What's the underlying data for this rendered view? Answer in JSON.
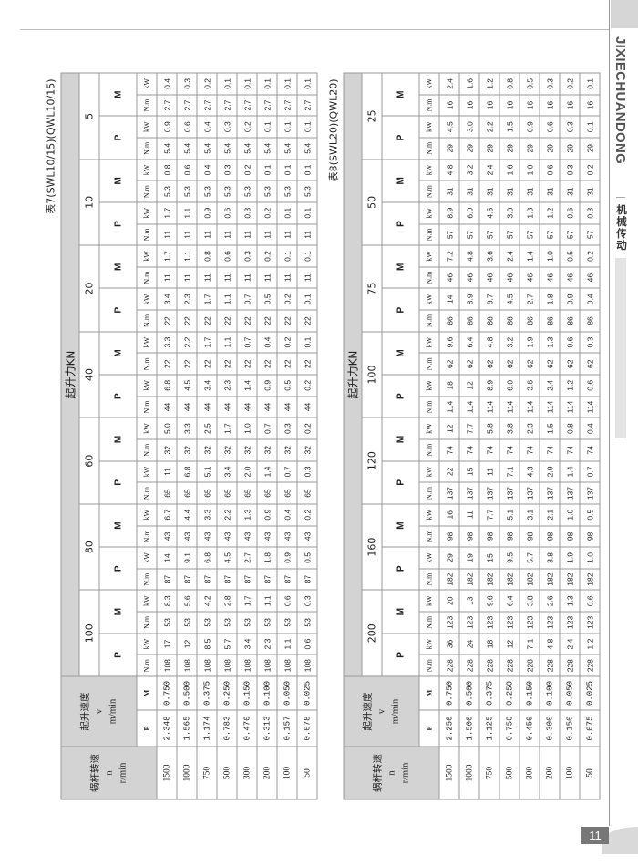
{
  "sidebar": {
    "brand_en": "JIXIECHUANDONG",
    "brand_cn": "机械传动",
    "page_number": "11"
  },
  "labels": {
    "worm_speed": "蜗杆转速",
    "worm_speed_symbol": "n",
    "worm_speed_unit": "r/min",
    "lift_speed": "起升速度",
    "lift_speed_symbol": "v",
    "lift_speed_unit": "m/min",
    "lift_force": "起升力KN",
    "P": "P",
    "M": "M",
    "nm": "N.m",
    "kw": "kW"
  },
  "tables": [
    {
      "caption": "表7(SWL10/15)(QWL10/15)",
      "rows": [
        {
          "n": "1500",
          "vP": "2.348",
          "vM": "0.750"
        },
        {
          "n": "1000",
          "vP": "1.565",
          "vM": "0.500"
        },
        {
          "n": "750",
          "vP": "1.174",
          "vM": "0.375"
        },
        {
          "n": "500",
          "vP": "0.783",
          "vM": "0.250"
        },
        {
          "n": "300",
          "vP": "0.470",
          "vM": "0.150"
        },
        {
          "n": "200",
          "vP": "0.313",
          "vM": "0.100"
        },
        {
          "n": "100",
          "vP": "0.157",
          "vM": "0.050"
        },
        {
          "n": "50",
          "vP": "0.078",
          "vM": "0.025"
        }
      ],
      "loads": [
        {
          "load": "100",
          "P": {
            "nm": "108",
            "kw": [
              "17",
              "12",
              "8.5",
              "5.7",
              "3.4",
              "2.3",
              "1.1",
              "0.6"
            ]
          },
          "M": {
            "nm": "53",
            "kw": [
              "8.3",
              "5.6",
              "4.2",
              "2.8",
              "1.7",
              "1.1",
              "0.6",
              "0.3"
            ]
          }
        },
        {
          "load": "80",
          "P": {
            "nm": "87",
            "kw": [
              "14",
              "9.1",
              "6.8",
              "4.5",
              "2.7",
              "1.8",
              "0.9",
              "0.5"
            ]
          },
          "M": {
            "nm": "43",
            "kw": [
              "6.7",
              "4.4",
              "3.3",
              "2.2",
              "1.3",
              "0.9",
              "0.4",
              "0.2"
            ]
          }
        },
        {
          "load": "60",
          "P": {
            "nm": "65",
            "kw": [
              "11",
              "6.8",
              "5.1",
              "3.4",
              "2.0",
              "1.4",
              "0.7",
              "0.3"
            ]
          },
          "M": {
            "nm": "32",
            "kw": [
              "5.0",
              "3.3",
              "2.5",
              "1.7",
              "1.0",
              "0.7",
              "0.3",
              "0.2"
            ]
          }
        },
        {
          "load": "40",
          "P": {
            "nm": "44",
            "kw": [
              "6.8",
              "4.5",
              "3.4",
              "2.3",
              "1.4",
              "0.9",
              "0.5",
              "0.2"
            ]
          },
          "M": {
            "nm": "22",
            "kw": [
              "3.3",
              "2.2",
              "1.7",
              "1.1",
              "0.7",
              "0.4",
              "0.2",
              "0.1"
            ]
          }
        },
        {
          "load": "20",
          "P": {
            "nm": "22",
            "kw": [
              "3.4",
              "2.3",
              "1.7",
              "1.1",
              "0.7",
              "0.5",
              "0.2",
              "0.1"
            ]
          },
          "M": {
            "nm": "11",
            "kw": [
              "1.7",
              "1.1",
              "0.8",
              "0.6",
              "0.3",
              "0.2",
              "0.1",
              "0.1"
            ]
          }
        },
        {
          "load": "10",
          "P": {
            "nm": "11",
            "kw": [
              "1.7",
              "1.1",
              "0.9",
              "0.6",
              "0.3",
              "0.2",
              "0.1",
              "0.1"
            ]
          },
          "M": {
            "nm": "5.3",
            "kw": [
              "0.8",
              "0.6",
              "0.4",
              "0.3",
              "0.2",
              "0.1",
              "0.1",
              "0.1"
            ]
          }
        },
        {
          "load": "5",
          "P": {
            "nm": "5.4",
            "kw": [
              "0.9",
              "0.6",
              "0.4",
              "0.3",
              "0.2",
              "0.1",
              "0.1",
              "0.1"
            ]
          },
          "M": {
            "nm": "2.7",
            "kw": [
              "0.4",
              "0.3",
              "0.2",
              "0.1",
              "0.1",
              "0.1",
              "0.1",
              "0.1"
            ]
          }
        }
      ]
    },
    {
      "caption": "表8(SWL20)(QWL20)",
      "rows": [
        {
          "n": "1500",
          "vP": "2.250",
          "vM": "0.750"
        },
        {
          "n": "1000",
          "vP": "1.500",
          "vM": "0.500"
        },
        {
          "n": "750",
          "vP": "1.125",
          "vM": "0.375"
        },
        {
          "n": "500",
          "vP": "0.750",
          "vM": "0.250"
        },
        {
          "n": "300",
          "vP": "0.450",
          "vM": "0.150"
        },
        {
          "n": "200",
          "vP": "0.300",
          "vM": "0.100"
        },
        {
          "n": "100",
          "vP": "0.150",
          "vM": "0.050"
        },
        {
          "n": "50",
          "vP": "0.075",
          "vM": "0.025"
        }
      ],
      "loads": [
        {
          "load": "200",
          "P": {
            "nm": "228",
            "kw": [
              "36",
              "24",
              "18",
              "12",
              "7.1",
              "4.8",
              "2.4",
              "1.2"
            ]
          },
          "M": {
            "nm": "123",
            "kw": [
              "20",
              "13",
              "9.6",
              "6.4",
              "3.8",
              "2.6",
              "1.3",
              "0.6"
            ]
          }
        },
        {
          "load": "160",
          "P": {
            "nm": "182",
            "kw": [
              "29",
              "19",
              "15",
              "9.5",
              "5.7",
              "3.8",
              "1.9",
              "1.0"
            ]
          },
          "M": {
            "nm": "98",
            "kw": [
              "16",
              "11",
              "7.7",
              "5.1",
              "3.1",
              "2.1",
              "1.0",
              "0.5"
            ]
          }
        },
        {
          "load": "120",
          "P": {
            "nm": "137",
            "kw": [
              "22",
              "15",
              "11",
              "7.1",
              "4.3",
              "2.9",
              "1.4",
              "0.7"
            ]
          },
          "M": {
            "nm": "74",
            "kw": [
              "12",
              "7.7",
              "5.8",
              "3.8",
              "2.3",
              "1.5",
              "0.8",
              "0.4"
            ]
          }
        },
        {
          "load": "100",
          "P": {
            "nm": "114",
            "kw": [
              "18",
              "12",
              "8.9",
              "6.0",
              "3.6",
              "2.4",
              "1.2",
              "0.6"
            ]
          },
          "M": {
            "nm": "62",
            "kw": [
              "9.6",
              "6.4",
              "4.8",
              "3.2",
              "1.9",
              "1.3",
              "0.6",
              "0.3"
            ]
          }
        },
        {
          "load": "75",
          "P": {
            "nm": "86",
            "kw": [
              "14",
              "8.9",
              "6.7",
              "4.5",
              "2.7",
              "1.8",
              "0.9",
              "0.4"
            ]
          },
          "M": {
            "nm": "46",
            "kw": [
              "7.2",
              "4.8",
              "3.6",
              "2.4",
              "1.4",
              "1.0",
              "0.5",
              "0.2"
            ]
          }
        },
        {
          "load": "50",
          "P": {
            "nm": "57",
            "kw": [
              "8.9",
              "6.0",
              "4.5",
              "3.0",
              "1.8",
              "1.2",
              "0.6",
              "0.3"
            ]
          },
          "M": {
            "nm": "31",
            "kw": [
              "4.8",
              "3.2",
              "2.4",
              "1.6",
              "1.0",
              "0.6",
              "0.3",
              "0.2"
            ]
          }
        },
        {
          "load": "25",
          "P": {
            "nm": "29",
            "kw": [
              "4.5",
              "3.0",
              "2.2",
              "1.5",
              "0.9",
              "0.6",
              "0.3",
              "0.1"
            ]
          },
          "M": {
            "nm": "16",
            "kw": [
              "2.4",
              "1.6",
              "1.2",
              "0.8",
              "0.5",
              "0.3",
              "0.2",
              "0.1"
            ]
          }
        }
      ]
    }
  ]
}
